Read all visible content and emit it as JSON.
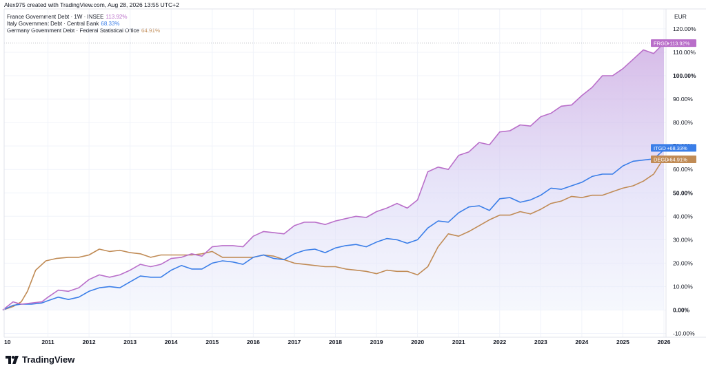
{
  "header": {
    "text": "Alex975 created with TradingView.com, Aug 28, 2026 13:55 UTC+2"
  },
  "legend": [
    {
      "label": "France Government Debt · 1W · INSEE",
      "value": "113.92%",
      "color": "#b96ec9"
    },
    {
      "label": "Italy Government Debt · Central Bank",
      "value": "68.33%",
      "color": "#3a7ee8"
    },
    {
      "label": "Germany Government Debt · Federal Statistical Office",
      "value": "64.91%",
      "color": "#c08b55"
    }
  ],
  "brand": {
    "name": "TradingView"
  },
  "chart_data": {
    "type": "line",
    "currency_label": "EUR",
    "x_ticks": [
      "10",
      "2011",
      "2012",
      "2013",
      "2014",
      "2015",
      "2016",
      "2017",
      "2018",
      "2019",
      "2020",
      "2021",
      "2022",
      "2023",
      "2024",
      "2025",
      "2026"
    ],
    "x_tick_years": [
      2010.0,
      2011,
      2012,
      2013,
      2014,
      2015,
      2016,
      2017,
      2018,
      2019,
      2020,
      2021,
      2022,
      2023,
      2024,
      2025,
      2026
    ],
    "y_ticks": [
      "120.00%",
      "110.00%",
      "100.00%",
      "90.00%",
      "80.00%",
      "70.00%",
      "60.00%",
      "50.00%",
      "40.00%",
      "30.00%",
      "20.00%",
      "10.00%",
      "0.00%",
      "-10.00%"
    ],
    "y_tick_values": [
      120,
      110,
      100,
      90,
      80,
      70,
      60,
      50,
      40,
      30,
      20,
      10,
      0,
      -10
    ],
    "y_bold_ticks": [
      "100.00%",
      "50.00%",
      "0.00%"
    ],
    "ylim": [
      -10,
      120
    ],
    "grid": true,
    "series": [
      {
        "name": "France Government Debt",
        "tag": "FRGD",
        "tag_value": "+113.92%",
        "color": "#b96ec9",
        "last": 113.92,
        "x": [
          2009.9,
          2010.15,
          2010.35,
          2010.6,
          2010.85,
          2011.0,
          2011.25,
          2011.5,
          2011.75,
          2012.0,
          2012.25,
          2012.5,
          2012.75,
          2013.0,
          2013.25,
          2013.5,
          2013.75,
          2014.0,
          2014.25,
          2014.5,
          2014.75,
          2015.0,
          2015.25,
          2015.5,
          2015.75,
          2016.0,
          2016.25,
          2016.5,
          2016.75,
          2017.0,
          2017.25,
          2017.5,
          2017.75,
          2018.0,
          2018.25,
          2018.5,
          2018.75,
          2019.0,
          2019.25,
          2019.5,
          2019.75,
          2020.0,
          2020.25,
          2020.5,
          2020.75,
          2021.0,
          2021.25,
          2021.5,
          2021.75,
          2022.0,
          2022.25,
          2022.5,
          2022.75,
          2023.0,
          2023.25,
          2023.5,
          2023.75,
          2024.0,
          2024.25,
          2024.5,
          2024.75,
          2025.0,
          2025.25,
          2025.5,
          2025.75,
          2026.0
        ],
        "y": [
          0,
          3.5,
          2.5,
          3,
          3.5,
          5.5,
          8.5,
          8,
          9.5,
          13,
          15,
          14,
          15,
          17,
          19.5,
          18.5,
          19.5,
          22,
          22.5,
          24,
          23,
          27,
          27.5,
          27.5,
          27,
          31.5,
          33.5,
          33,
          32.5,
          36,
          37.5,
          37.5,
          36.5,
          38,
          39,
          40,
          39.5,
          42,
          43.5,
          45.5,
          43.5,
          47,
          59,
          61,
          60,
          66,
          67.5,
          71.5,
          70.5,
          76,
          76.5,
          79,
          78.5,
          82.5,
          84,
          87,
          87.5,
          91.5,
          95,
          100,
          100,
          103,
          107,
          111,
          109.5,
          113.92
        ]
      },
      {
        "name": "Italy Government Debt",
        "tag": "ITGD",
        "tag_value": "+68.33%",
        "color": "#3a7ee8",
        "last": 68.33,
        "x": [
          2009.9,
          2010.15,
          2010.35,
          2010.6,
          2010.85,
          2011.0,
          2011.25,
          2011.5,
          2011.75,
          2012.0,
          2012.25,
          2012.5,
          2012.75,
          2013.0,
          2013.25,
          2013.5,
          2013.75,
          2014.0,
          2014.25,
          2014.5,
          2014.75,
          2015.0,
          2015.25,
          2015.5,
          2015.75,
          2016.0,
          2016.25,
          2016.5,
          2016.75,
          2017.0,
          2017.25,
          2017.5,
          2017.75,
          2018.0,
          2018.25,
          2018.5,
          2018.75,
          2019.0,
          2019.25,
          2019.5,
          2019.75,
          2020.0,
          2020.25,
          2020.5,
          2020.75,
          2021.0,
          2021.25,
          2021.5,
          2021.75,
          2022.0,
          2022.25,
          2022.5,
          2022.75,
          2023.0,
          2023.25,
          2023.5,
          2023.75,
          2024.0,
          2024.25,
          2024.5,
          2024.75,
          2025.0,
          2025.25,
          2025.5,
          2025.75,
          2026.0
        ],
        "y": [
          0,
          2,
          2.5,
          2.5,
          3,
          4,
          5.5,
          4.5,
          5.5,
          8,
          9.5,
          10,
          9.5,
          12,
          14.5,
          14,
          14,
          17,
          19,
          17.5,
          17.5,
          20,
          21,
          20.5,
          19.5,
          22.5,
          23.5,
          22,
          21.5,
          24,
          25.5,
          26,
          24.5,
          26.5,
          27.5,
          28,
          27,
          29,
          30.5,
          30,
          28.5,
          30,
          35,
          38,
          37.5,
          41.5,
          44,
          44.5,
          42.5,
          47.5,
          48,
          46,
          47,
          49,
          52,
          51.5,
          53,
          54.5,
          57,
          58,
          58,
          61.5,
          63.5,
          64,
          64.5,
          68.33
        ]
      },
      {
        "name": "Germany Government Debt",
        "tag": "DEGD",
        "tag_value": "+64.91%",
        "color": "#c08b55",
        "last": 64.91,
        "x": [
          2009.9,
          2010.15,
          2010.35,
          2010.5,
          2010.7,
          2010.95,
          2011.2,
          2011.5,
          2011.75,
          2012.0,
          2012.25,
          2012.5,
          2012.75,
          2013.0,
          2013.25,
          2013.5,
          2013.75,
          2014.0,
          2014.25,
          2014.5,
          2014.75,
          2015.0,
          2015.25,
          2015.5,
          2015.75,
          2016.0,
          2016.25,
          2016.5,
          2016.75,
          2017.0,
          2017.25,
          2017.5,
          2017.75,
          2018.0,
          2018.25,
          2018.5,
          2018.75,
          2019.0,
          2019.25,
          2019.5,
          2019.75,
          2020.0,
          2020.25,
          2020.5,
          2020.75,
          2021.0,
          2021.25,
          2021.5,
          2021.75,
          2022.0,
          2022.25,
          2022.5,
          2022.75,
          2023.0,
          2023.25,
          2023.5,
          2023.75,
          2024.0,
          2024.25,
          2024.5,
          2024.75,
          2025.0,
          2025.25,
          2025.5,
          2025.75,
          2026.0
        ],
        "y": [
          0,
          1.5,
          3.5,
          8,
          17,
          21,
          22,
          22.5,
          22.5,
          23.5,
          26,
          25,
          25.5,
          24.5,
          24,
          22.5,
          23.5,
          23.5,
          23.5,
          23.5,
          24,
          25,
          22.5,
          22.5,
          22.5,
          22.5,
          23.5,
          23,
          21.5,
          20,
          19.5,
          19,
          18.5,
          18.5,
          17.5,
          17,
          16.5,
          15.5,
          17,
          16.5,
          16.5,
          15,
          18.5,
          27,
          32.5,
          31.5,
          33.5,
          36,
          38.5,
          40.5,
          40.5,
          42,
          41,
          43,
          45.5,
          46.5,
          48.5,
          48,
          49,
          49,
          50.5,
          52,
          53,
          55,
          58,
          64.91
        ]
      }
    ]
  }
}
